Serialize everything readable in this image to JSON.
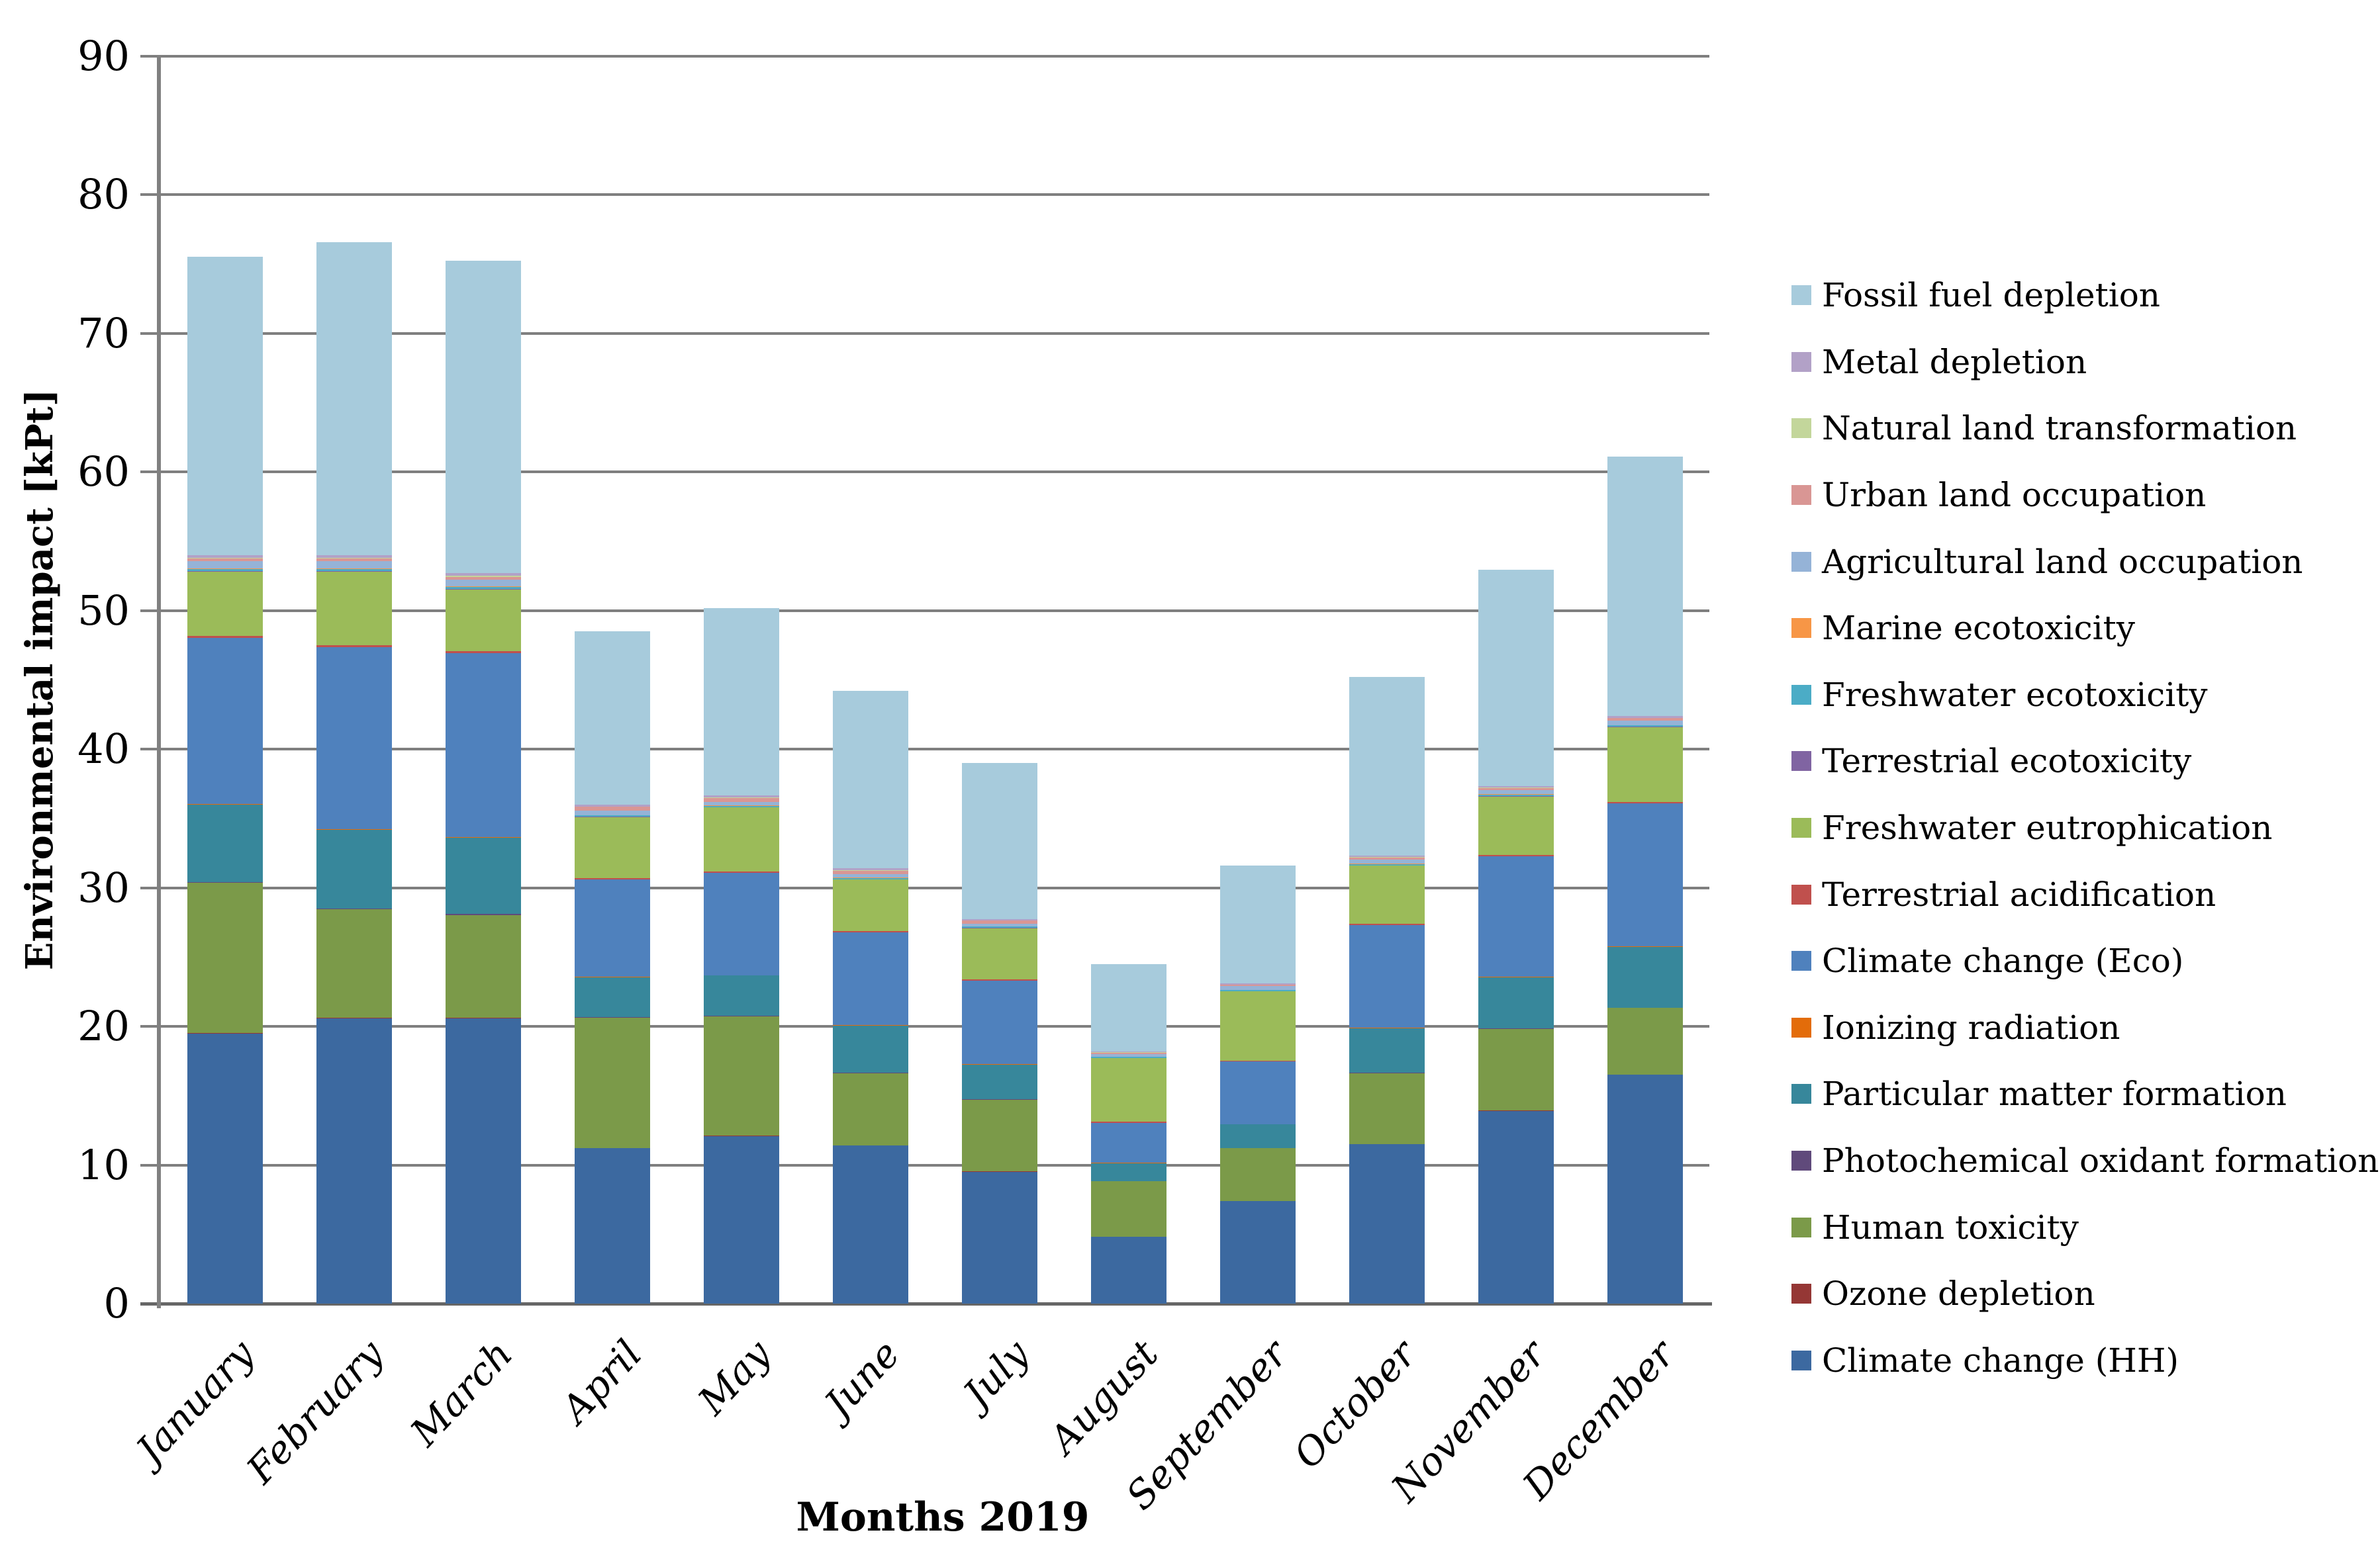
{
  "chart_data": {
    "type": "bar",
    "stacked": true,
    "title": "",
    "xlabel": "Months 2019",
    "ylabel": "Environmental impact [kPt]",
    "ylim": [
      0,
      90
    ],
    "y_ticks": [
      0,
      10,
      20,
      30,
      40,
      50,
      60,
      70,
      80,
      90
    ],
    "grid": true,
    "legend_position": "right",
    "categories": [
      "January",
      "February",
      "March",
      "April",
      "May",
      "June",
      "July",
      "August",
      "September",
      "October",
      "November",
      "December"
    ],
    "totals": [
      75.5,
      76.6,
      75.3,
      48.5,
      50.2,
      44.2,
      39.0,
      24.5,
      31.6,
      45.2,
      53.0,
      61.1
    ],
    "series": [
      {
        "name": "Climate change (HH)",
        "color": "#3C69A0",
        "values": [
          19.5,
          20.6,
          20.6,
          11.2,
          12.1,
          11.4,
          9.5,
          4.8,
          7.4,
          11.5,
          13.9,
          16.5
        ]
      },
      {
        "name": "Ozone depletion",
        "color": "#953735",
        "values": [
          0.05,
          0.05,
          0.05,
          0.03,
          0.03,
          0.03,
          0.03,
          0.02,
          0.02,
          0.03,
          0.03,
          0.03
        ]
      },
      {
        "name": "Human toxicity",
        "color": "#7B9A49",
        "values": [
          10.8,
          7.8,
          7.4,
          9.4,
          8.6,
          5.2,
          5.2,
          4.0,
          3.8,
          5.1,
          5.9,
          4.8
        ]
      },
      {
        "name": "Photochemical oxidant formation",
        "color": "#604A7B",
        "values": [
          0.05,
          0.05,
          0.05,
          0.03,
          0.03,
          0.03,
          0.03,
          0.02,
          0.02,
          0.03,
          0.03,
          0.03
        ]
      },
      {
        "name": "Particular matter formation",
        "color": "#37879B",
        "values": [
          5.6,
          5.7,
          5.5,
          2.9,
          2.9,
          3.4,
          2.5,
          1.3,
          1.7,
          3.2,
          3.7,
          4.4
        ]
      },
      {
        "name": "Ionizing radiation",
        "color": "#E36C0A",
        "values": [
          0.05,
          0.05,
          0.05,
          0.03,
          0.03,
          0.03,
          0.03,
          0.02,
          0.02,
          0.03,
          0.03,
          0.03
        ]
      },
      {
        "name": "Climate change (Eco)",
        "color": "#4F81BD",
        "values": [
          12.0,
          13.1,
          13.3,
          7.0,
          7.4,
          6.7,
          6.0,
          2.9,
          4.5,
          7.4,
          8.7,
          10.3
        ]
      },
      {
        "name": "Terrestrial acidification",
        "color": "#C0504D",
        "values": [
          0.15,
          0.15,
          0.15,
          0.1,
          0.1,
          0.1,
          0.1,
          0.06,
          0.08,
          0.1,
          0.1,
          0.1
        ]
      },
      {
        "name": "Freshwater eutrophication",
        "color": "#9BBB59",
        "values": [
          4.6,
          5.3,
          4.4,
          4.4,
          4.6,
          3.7,
          3.7,
          4.6,
          5.0,
          4.2,
          4.2,
          5.4
        ]
      },
      {
        "name": "Terrestrial ecotoxicity",
        "color": "#8064A2",
        "values": [
          0.05,
          0.05,
          0.05,
          0.03,
          0.03,
          0.03,
          0.03,
          0.02,
          0.02,
          0.03,
          0.03,
          0.03
        ]
      },
      {
        "name": "Freshwater ecotoxicity",
        "color": "#4BACC6",
        "values": [
          0.15,
          0.15,
          0.15,
          0.1,
          0.1,
          0.1,
          0.08,
          0.06,
          0.08,
          0.1,
          0.1,
          0.1
        ]
      },
      {
        "name": "Marine ecotoxicity",
        "color": "#F79646",
        "values": [
          0.05,
          0.05,
          0.05,
          0.03,
          0.03,
          0.03,
          0.03,
          0.02,
          0.02,
          0.03,
          0.03,
          0.03
        ]
      },
      {
        "name": "Agricultural land occupation",
        "color": "#95B3D7",
        "values": [
          0.5,
          0.5,
          0.5,
          0.3,
          0.25,
          0.25,
          0.2,
          0.2,
          0.25,
          0.3,
          0.3,
          0.3
        ]
      },
      {
        "name": "Urban land occupation",
        "color": "#D99694",
        "values": [
          0.2,
          0.2,
          0.2,
          0.3,
          0.3,
          0.25,
          0.2,
          0.1,
          0.1,
          0.15,
          0.15,
          0.2
        ]
      },
      {
        "name": "Natural land transformation",
        "color": "#C3D69B",
        "values": [
          0.05,
          0.05,
          0.05,
          0.03,
          0.03,
          0.03,
          0.03,
          0.02,
          0.02,
          0.03,
          0.03,
          0.03
        ]
      },
      {
        "name": "Metal depletion",
        "color": "#B2A1C7",
        "values": [
          0.2,
          0.2,
          0.2,
          0.12,
          0.12,
          0.12,
          0.1,
          0.08,
          0.1,
          0.12,
          0.12,
          0.12
        ]
      },
      {
        "name": "Fossil fuel depletion",
        "color": "#A7CBDC",
        "values": [
          21.55,
          22.6,
          22.55,
          12.5,
          13.55,
          12.8,
          11.24,
          6.28,
          8.47,
          12.85,
          15.6,
          18.7
        ]
      }
    ],
    "legend": {
      "position": "right",
      "items_top_to_bottom": [
        "Fossil fuel depletion",
        "Metal depletion",
        "Natural land transformation",
        "Urban land occupation",
        "Agricultural land occupation",
        "Marine ecotoxicity",
        "Freshwater ecotoxicity",
        "Terrestrial ecotoxicity",
        "Freshwater eutrophication",
        "Terrestrial acidification",
        "Climate change (Eco)",
        "Ionizing radiation",
        "Particular matter formation",
        "Photochemical oxidant formation",
        "Human toxicity",
        "Ozone depletion",
        "Climate change (HH)"
      ]
    },
    "colors": {
      "background": "#FFFFFF",
      "gridline": "#7F7F7F",
      "axis_line": "#808080",
      "baseline": "#666666",
      "text": "#000000"
    }
  }
}
